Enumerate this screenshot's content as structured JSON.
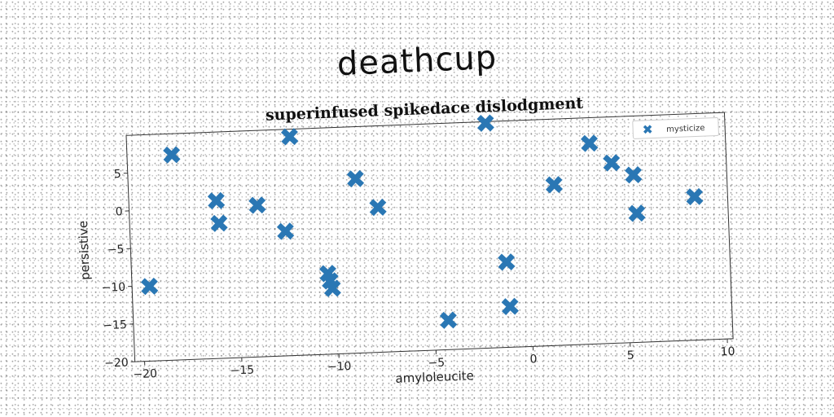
{
  "figure": {
    "title": "deathcup"
  },
  "colors": {
    "marker": "#2a77b4",
    "axis": "#333333",
    "background": "#ffffff"
  },
  "chart_data": {
    "type": "scatter",
    "title": "superinfused spikedace dislodgment",
    "xlabel": "amyloleucite",
    "ylabel": "persistive",
    "xlim": [
      -20.5,
      10.3
    ],
    "ylim": [
      -20,
      10
    ],
    "xticks": [
      -20,
      -15,
      -10,
      -5,
      0,
      5,
      10
    ],
    "xtick_labels": [
      "−20",
      "−15",
      "−10",
      "−5",
      "0",
      "5",
      "10"
    ],
    "yticks": [
      -20,
      -15,
      -10,
      -5,
      0,
      5
    ],
    "ytick_labels": [
      "−20",
      "−15",
      "−10",
      "−5",
      "0",
      "5"
    ],
    "grid": false,
    "legend_position": "top-right",
    "marker": "X",
    "series": [
      {
        "name": "mysticize",
        "x": [
          -19.6,
          -18.2,
          -16.0,
          -15.9,
          -13.9,
          -12.5,
          -12.1,
          -10.4,
          -10.3,
          -10.2,
          -8.8,
          -7.7,
          -4.3,
          -2.0,
          -1.2,
          -1.1,
          1.4,
          3.3,
          4.4,
          5.5,
          5.6,
          8.6
        ],
        "y": [
          -10.1,
          7.2,
          0.9,
          -2.1,
          0.1,
          -3.5,
          9.0,
          -9.3,
          -10.3,
          -11.3,
          3.1,
          -0.8,
          -16.1,
          9.8,
          -8.7,
          -14.6,
          1.3,
          6.6,
          3.9,
          2.2,
          -2.9,
          -1.0
        ]
      }
    ]
  }
}
